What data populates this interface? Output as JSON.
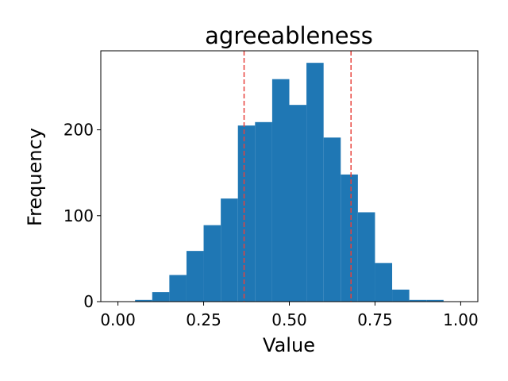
{
  "chart_data": {
    "type": "bar",
    "title": "agreeableness",
    "xlabel": "Value",
    "ylabel": "Frequency",
    "xlim": [
      -0.05,
      1.05
    ],
    "ylim": [
      0,
      292
    ],
    "x_ticks": [
      0.0,
      0.25,
      0.5,
      0.75,
      1.0
    ],
    "x_tick_labels": [
      "0.00",
      "0.25",
      "0.50",
      "0.75",
      "1.00"
    ],
    "y_ticks": [
      0,
      100,
      200
    ],
    "y_tick_labels": [
      "0",
      "100",
      "200"
    ],
    "bin_edges": [
      0.0,
      0.05,
      0.1,
      0.15,
      0.2,
      0.25,
      0.3,
      0.35,
      0.4,
      0.45,
      0.5,
      0.55,
      0.6,
      0.65,
      0.7,
      0.75,
      0.8,
      0.85,
      0.9,
      0.95,
      1.0
    ],
    "values": [
      0,
      2,
      11,
      31,
      59,
      89,
      120,
      205,
      209,
      259,
      229,
      278,
      191,
      148,
      104,
      45,
      14,
      2,
      2,
      0
    ],
    "reference_lines": [
      0.368,
      0.68
    ],
    "bar_color": "#1f77b4",
    "reference_line_color": "#e8413a",
    "grid": false,
    "legend": false
  }
}
